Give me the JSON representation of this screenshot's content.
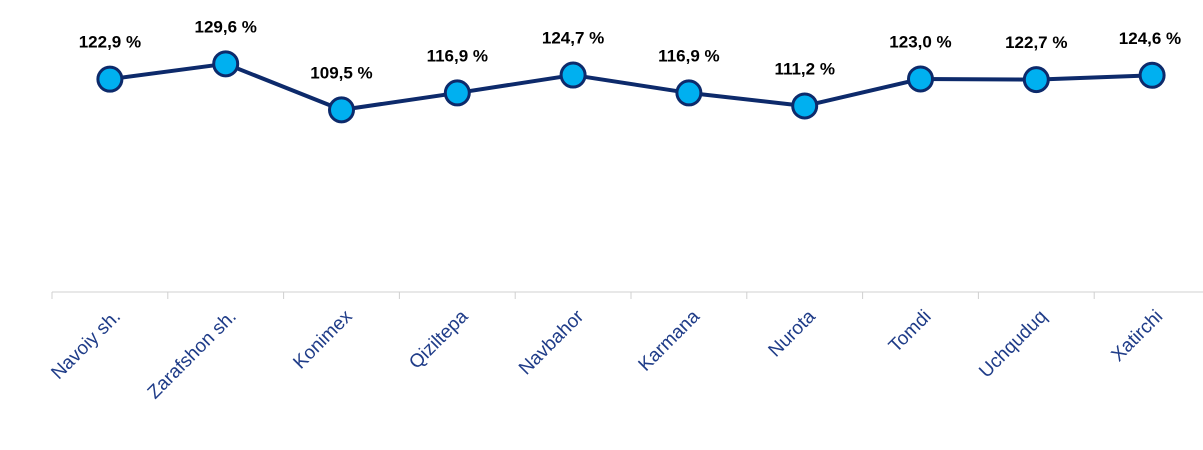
{
  "chart_data": {
    "type": "line",
    "categories": [
      "Navoiy sh.",
      "Zarafshon sh.",
      "Konimex",
      "Qiziltepa",
      "Navbahor",
      "Karmana",
      "Nurota",
      "Tomdi",
      "Uchquduq",
      "Xatirchi"
    ],
    "values": [
      122.9,
      129.6,
      109.5,
      116.9,
      124.7,
      116.9,
      111.2,
      123.0,
      122.7,
      124.6
    ],
    "value_labels": [
      "122,9 %",
      "129,6 %",
      "109,5 %",
      "116,9 %",
      "124,7 %",
      "116,9 %",
      "111,2 %",
      "123,0 %",
      "122,7 %",
      "124,6 %"
    ],
    "color": "#0d2a6b",
    "marker_color": "#00b0f0",
    "ylim": [
      30,
      140
    ]
  }
}
